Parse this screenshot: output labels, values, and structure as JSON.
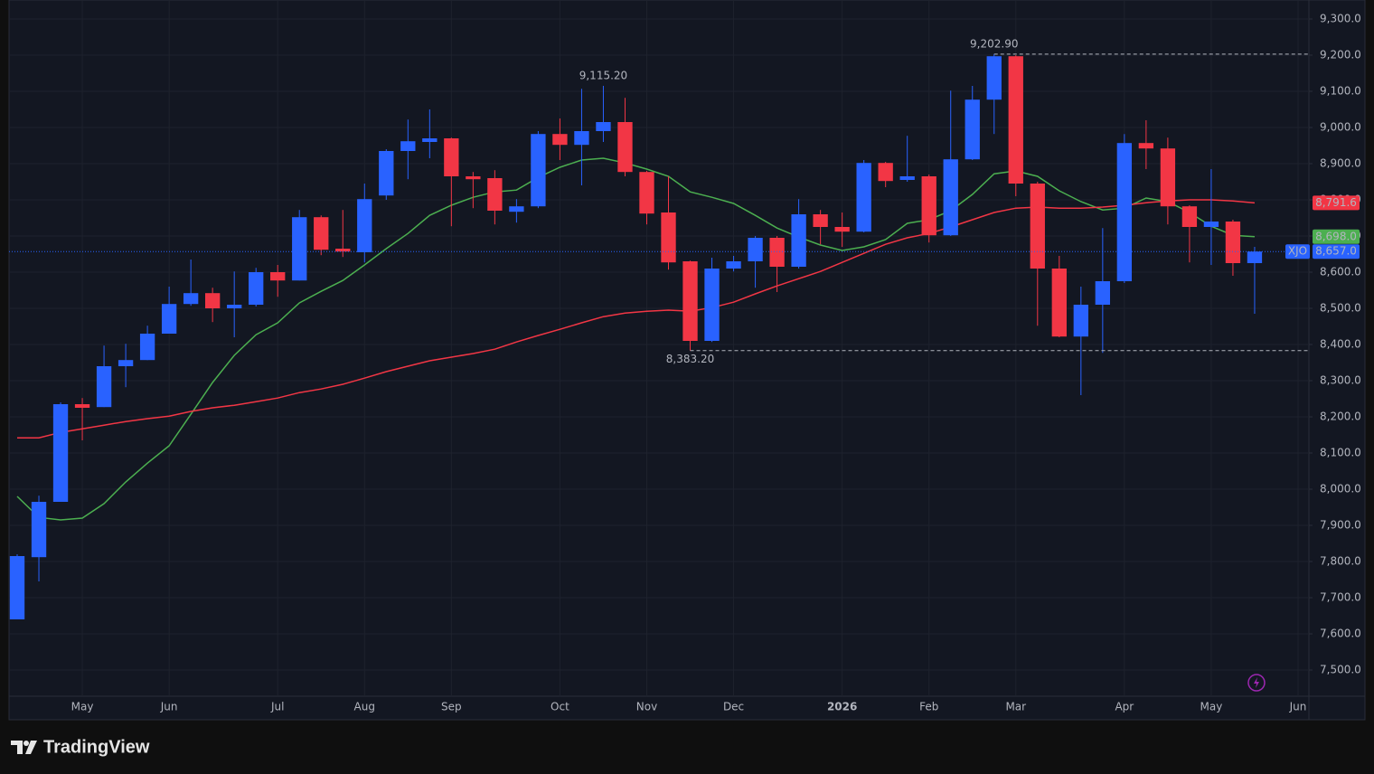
{
  "chart_data": {
    "type": "candlestick",
    "symbol": "XJO",
    "xlim": [
      -0.375,
      59.5
    ],
    "xticks": [
      {
        "value": 3,
        "label": "May"
      },
      {
        "value": 7,
        "label": "Jun"
      },
      {
        "value": 12,
        "label": "Jul"
      },
      {
        "value": 16,
        "label": "Aug"
      },
      {
        "value": 20,
        "label": "Sep"
      },
      {
        "value": 25,
        "label": "Oct"
      },
      {
        "value": 29,
        "label": "Nov"
      },
      {
        "value": 33,
        "label": "Dec"
      },
      {
        "value": 38,
        "label": "2026"
      },
      {
        "value": 42,
        "label": "Feb"
      },
      {
        "value": 46,
        "label": "Mar"
      },
      {
        "value": 51,
        "label": "Apr"
      },
      {
        "value": 55,
        "label": "May"
      },
      {
        "value": 59,
        "label": "Jun"
      }
    ],
    "ylim": [
      7427.5,
      9352.5
    ],
    "yticks": [
      {
        "value": 7500,
        "label": "7,500.0"
      },
      {
        "value": 7600,
        "label": "7,600.0"
      },
      {
        "value": 7700,
        "label": "7,700.0"
      },
      {
        "value": 7800,
        "label": "7,800.0"
      },
      {
        "value": 7900,
        "label": "7,900.0"
      },
      {
        "value": 8000,
        "label": "8,000.0"
      },
      {
        "value": 8100,
        "label": "8,100.0"
      },
      {
        "value": 8200,
        "label": "8,200.0"
      },
      {
        "value": 8300,
        "label": "8,300.0"
      },
      {
        "value": 8400,
        "label": "8,400.0"
      },
      {
        "value": 8500,
        "label": "8,500.0"
      },
      {
        "value": 8600,
        "label": "8,600.0"
      },
      {
        "value": 8700,
        "label": "8,700.0"
      },
      {
        "value": 8800,
        "label": "8,800.0"
      },
      {
        "value": 8900,
        "label": "8,900.0"
      },
      {
        "value": 9000,
        "label": "9,000.0"
      },
      {
        "value": 9100,
        "label": "9,100.0"
      },
      {
        "value": 9200,
        "label": "9,200.0"
      },
      {
        "value": 9300,
        "label": "9,300.0"
      }
    ],
    "grid": true,
    "up_color": "#2962ff",
    "down_color": "#f23645",
    "open": [
      7640,
      7812,
      7965,
      8235,
      8227,
      8340,
      8357,
      8430,
      8512,
      8542,
      8500,
      8510,
      8600,
      8577,
      8752,
      8665,
      8655,
      8812,
      8935,
      8960,
      8970,
      8865,
      8860,
      8767,
      8782,
      8982,
      8952,
      8990,
      9015,
      8877,
      8765,
      8630,
      8410,
      8610,
      8630,
      8695,
      8615,
      8760,
      8725,
      8712,
      8902,
      8855,
      8865,
      8702,
      8912,
      9077,
      9197,
      8845,
      8610,
      8422,
      8510,
      8575,
      8957,
      8942,
      8782,
      8725,
      8740,
      8625
    ],
    "high": [
      7820,
      7982,
      8240,
      8252,
      8397,
      8402,
      8452,
      8560,
      8635,
      8557,
      8602,
      8612,
      8620,
      8772,
      8757,
      8772,
      8845,
      8940,
      9022,
      9050,
      8972,
      8877,
      8882,
      8802,
      8990,
      9025,
      9107,
      9115.2,
      9082,
      8880,
      8865,
      8632,
      8640,
      8645,
      8700,
      8700,
      8802,
      8772,
      8765,
      8910,
      8905,
      8977,
      8870,
      9102,
      9115,
      9202.9,
      9200,
      8850,
      8645,
      8560,
      8722,
      8982,
      9020,
      8972,
      8785,
      8885,
      8745,
      8670
    ],
    "low": [
      7640,
      7745,
      7965,
      8135,
      8227,
      8282,
      8357,
      8430,
      8507,
      8462,
      8420,
      8505,
      8532,
      8577,
      8647,
      8642,
      8627,
      8800,
      8857,
      8915,
      8727,
      8777,
      8732,
      8737,
      8777,
      8910,
      8840,
      8960,
      8865,
      8732,
      8607,
      8383.2,
      8407,
      8602,
      8557,
      8545,
      8610,
      8677,
      8670,
      8710,
      8835,
      8850,
      8682,
      8700,
      8910,
      8982,
      8810,
      8452,
      8420,
      8260,
      8377,
      8570,
      8885,
      8732,
      8627,
      8620,
      8590,
      8485
    ],
    "close": [
      7815,
      7965,
      8235,
      8225,
      8340,
      8357,
      8430,
      8512,
      8542,
      8500,
      8510,
      8600,
      8577,
      8752,
      8662,
      8657,
      8802,
      8935,
      8962,
      8970,
      8865,
      8857,
      8770,
      8782,
      8982,
      8952,
      8990,
      9015,
      8877,
      8762,
      8627,
      8410,
      8610,
      8630,
      8695,
      8615,
      8760,
      8725,
      8712,
      8902,
      8852,
      8865,
      8702,
      8912,
      9077,
      9197,
      8845,
      8610,
      8422,
      8510,
      8575,
      8957,
      8942,
      8782,
      8725,
      8740,
      8625,
      8657
    ],
    "close_label": "8,657.0",
    "series": [
      {
        "color": "#4caf50",
        "last_label": "8,698.0",
        "values": [
          7980,
          7922,
          7915,
          7920,
          7960,
          8020,
          8072,
          8120,
          8207,
          8295,
          8370,
          8427,
          8460,
          8515,
          8547,
          8577,
          8620,
          8665,
          8707,
          8757,
          8785,
          8807,
          8822,
          8827,
          8862,
          8890,
          8910,
          8915,
          8902,
          8885,
          8865,
          8822,
          8807,
          8790,
          8757,
          8722,
          8697,
          8675,
          8660,
          8670,
          8690,
          8735,
          8745,
          8770,
          8815,
          8872,
          8880,
          8865,
          8825,
          8795,
          8772,
          8777,
          8805,
          8795,
          8765,
          8727,
          8702,
          8698
        ]
      },
      {
        "color": "#f23645",
        "last_label": "8,791.6",
        "values": [
          8142,
          8142,
          8157,
          8167,
          8177,
          8187,
          8195,
          8202,
          8215,
          8225,
          8232,
          8242,
          8252,
          8267,
          8277,
          8290,
          8307,
          8325,
          8340,
          8355,
          8365,
          8375,
          8387,
          8407,
          8425,
          8442,
          8460,
          8477,
          8487,
          8492,
          8495,
          8492,
          8502,
          8517,
          8540,
          8562,
          8582,
          8602,
          8627,
          8652,
          8677,
          8695,
          8707,
          8725,
          8745,
          8765,
          8777,
          8780,
          8777,
          8777,
          8780,
          8785,
          8792,
          8797,
          8800,
          8800,
          8797,
          8791.6
        ]
      }
    ],
    "annotations": [
      {
        "value": 9115.2,
        "label": "9,115.20",
        "color": "#5b9cf6"
      },
      {
        "value": 9202.9,
        "label": "9,202.90",
        "color": "#5b9cf6",
        "dashed": true
      },
      {
        "value": 8383.2,
        "label": "8,383.20",
        "color": "#f7525f",
        "dashed": true
      }
    ]
  },
  "footer": {
    "brand": "TradingView"
  }
}
